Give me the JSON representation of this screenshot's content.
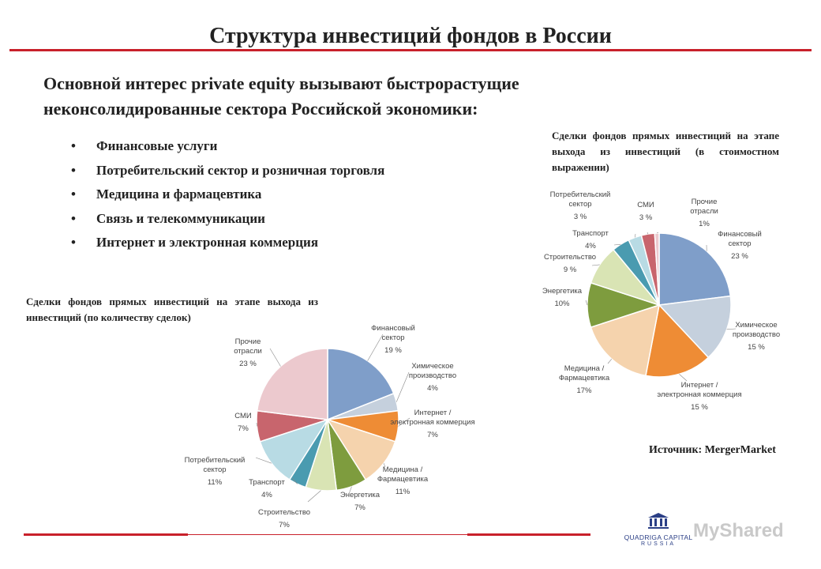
{
  "title": "Структура инвестиций фондов в России",
  "lead_text": "Основной интерес private equity вызывают быстрорастущие неконсолидированные сектора Российской экономики:",
  "bullets": [
    "Финансовые услуги",
    "Потребительский сектор и розничная торговля",
    "Медицина и фармацевтика",
    "Связь и телекоммуникации",
    "Интернет и электронная коммерция"
  ],
  "bullet_char": "•",
  "source": "Источник: MergerMarket",
  "logo": {
    "name": "QUADRIGA CAPITAL",
    "sub": "RUSSIA"
  },
  "watermark": "MyShared",
  "colors": {
    "rule": "#c8202b"
  },
  "chart_data": [
    {
      "type": "pie",
      "title": "Сделки фондов прямых инвестиций на этапе выхода из инвестиций (по количеству сделок)",
      "unit": "%",
      "slices": [
        {
          "label": "Финансовый сектор",
          "value": 19,
          "value_label": "19 %",
          "color": "#7f9ec9"
        },
        {
          "label": "Химическое производство",
          "value": 4,
          "value_label": "4%",
          "color": "#c5d0dd"
        },
        {
          "label": "Интернет / электронная коммерция",
          "value": 7,
          "value_label": "7%",
          "color": "#ee8c35"
        },
        {
          "label": "Медицина / Фармацевтика",
          "value": 11,
          "value_label": "11%",
          "color": "#f5d3ad"
        },
        {
          "label": "Энергетика",
          "value": 7,
          "value_label": "7%",
          "color": "#7e9c3e"
        },
        {
          "label": "Строительство",
          "value": 7,
          "value_label": "7%",
          "color": "#d9e4b4"
        },
        {
          "label": "Транспорт",
          "value": 4,
          "value_label": "4%",
          "color": "#4a9bb0"
        },
        {
          "label": "Потребительский сектор",
          "value": 11,
          "value_label": "11%",
          "color": "#b8dbe4"
        },
        {
          "label": "СМИ",
          "value": 7,
          "value_label": "7%",
          "color": "#c8656d"
        },
        {
          "label": "Прочие отрасли",
          "value": 23,
          "value_label": "23 %",
          "color": "#ecc9ce"
        }
      ]
    },
    {
      "type": "pie",
      "title": "Сделки фондов прямых инвестиций на этапе выхода из инвестиций (в стоимостном выражении)",
      "unit": "%",
      "slices": [
        {
          "label": "Финансовый сектор",
          "value": 23,
          "value_label": "23 %",
          "color": "#7f9ec9"
        },
        {
          "label": "Химическое производство",
          "value": 15,
          "value_label": "15 %",
          "color": "#c5d0dd"
        },
        {
          "label": "Интернет / электронная коммерция",
          "value": 15,
          "value_label": "15 %",
          "color": "#ee8c35"
        },
        {
          "label": "Медицина / Фармацевтика",
          "value": 17,
          "value_label": "17%",
          "color": "#f5d3ad"
        },
        {
          "label": "Энергетика",
          "value": 10,
          "value_label": "10%",
          "color": "#7e9c3e"
        },
        {
          "label": "Строительство",
          "value": 9,
          "value_label": "9 %",
          "color": "#d9e4b4"
        },
        {
          "label": "Транспорт",
          "value": 4,
          "value_label": "4%",
          "color": "#4a9bb0"
        },
        {
          "label": "Потребительский сектор",
          "value": 3,
          "value_label": "3 %",
          "color": "#b8dbe4"
        },
        {
          "label": "СМИ",
          "value": 3,
          "value_label": "3 %",
          "color": "#c8656d"
        },
        {
          "label": "Прочие отрасли",
          "value": 1,
          "value_label": "1%",
          "color": "#ecc9ce"
        }
      ]
    }
  ]
}
